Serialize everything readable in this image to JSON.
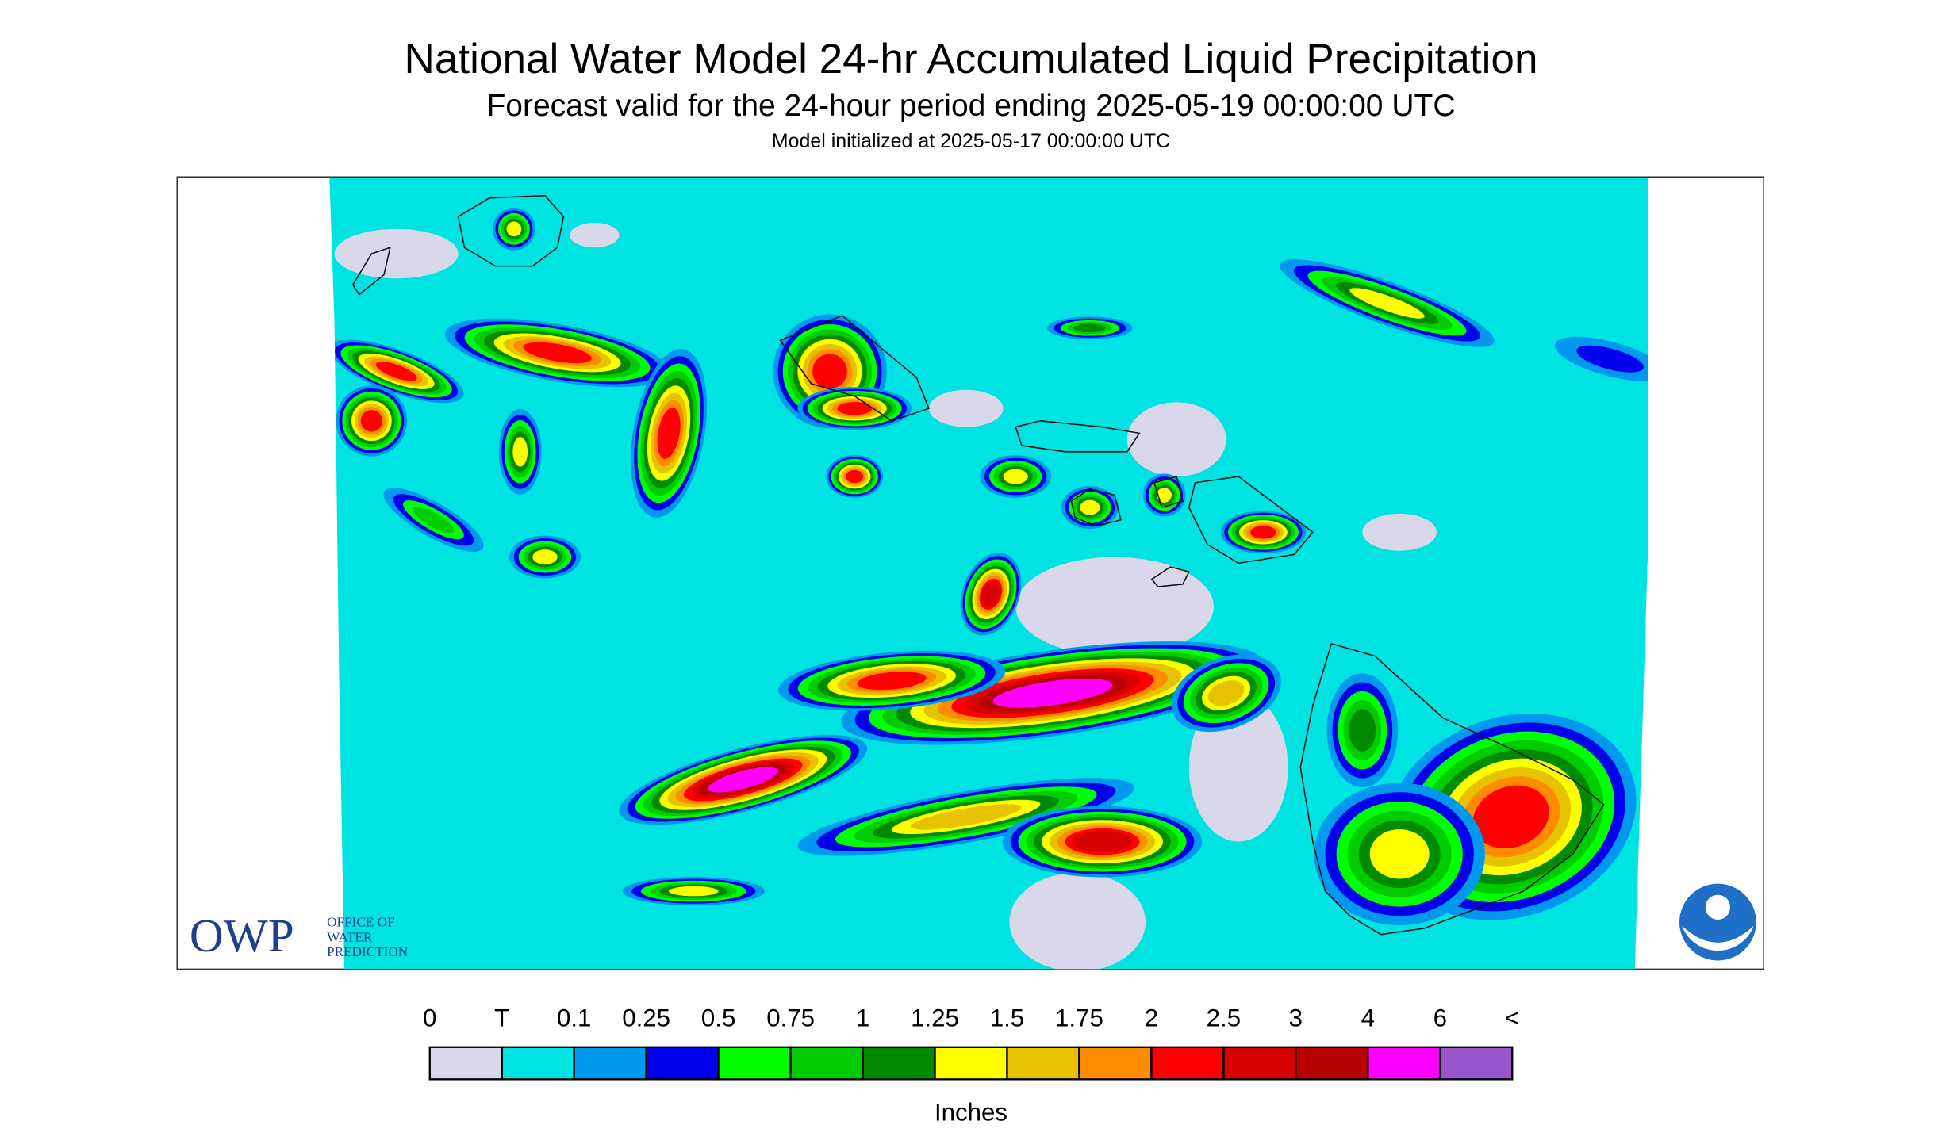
{
  "header": {
    "title": "National Water Model 24-hr Accumulated Liquid Precipitation",
    "subtitle": "Forecast valid for the 24-hour period ending 2025-05-19 00:00:00 UTC",
    "initialized": "Model initialized at 2025-05-17 00:00:00 UTC"
  },
  "legend": {
    "labels": [
      "0",
      "T",
      "0.1",
      "0.25",
      "0.5",
      "0.75",
      "1",
      "1.25",
      "1.5",
      "1.75",
      "2",
      "2.5",
      "3",
      "4",
      "6",
      "<"
    ],
    "colors": [
      "#d8d8ea",
      "#00e3e3",
      "#0099ee",
      "#0000ee",
      "#00ff00",
      "#00cc00",
      "#008a00",
      "#ffff00",
      "#e6c200",
      "#ff8c00",
      "#ff0000",
      "#d80000",
      "#b80000",
      "#ff00ff",
      "#9955cc"
    ],
    "unit": "Inches"
  },
  "logo": {
    "name": "OWP",
    "lines": [
      "OFFICE OF",
      "WATER",
      "PREDICTION"
    ]
  }
}
